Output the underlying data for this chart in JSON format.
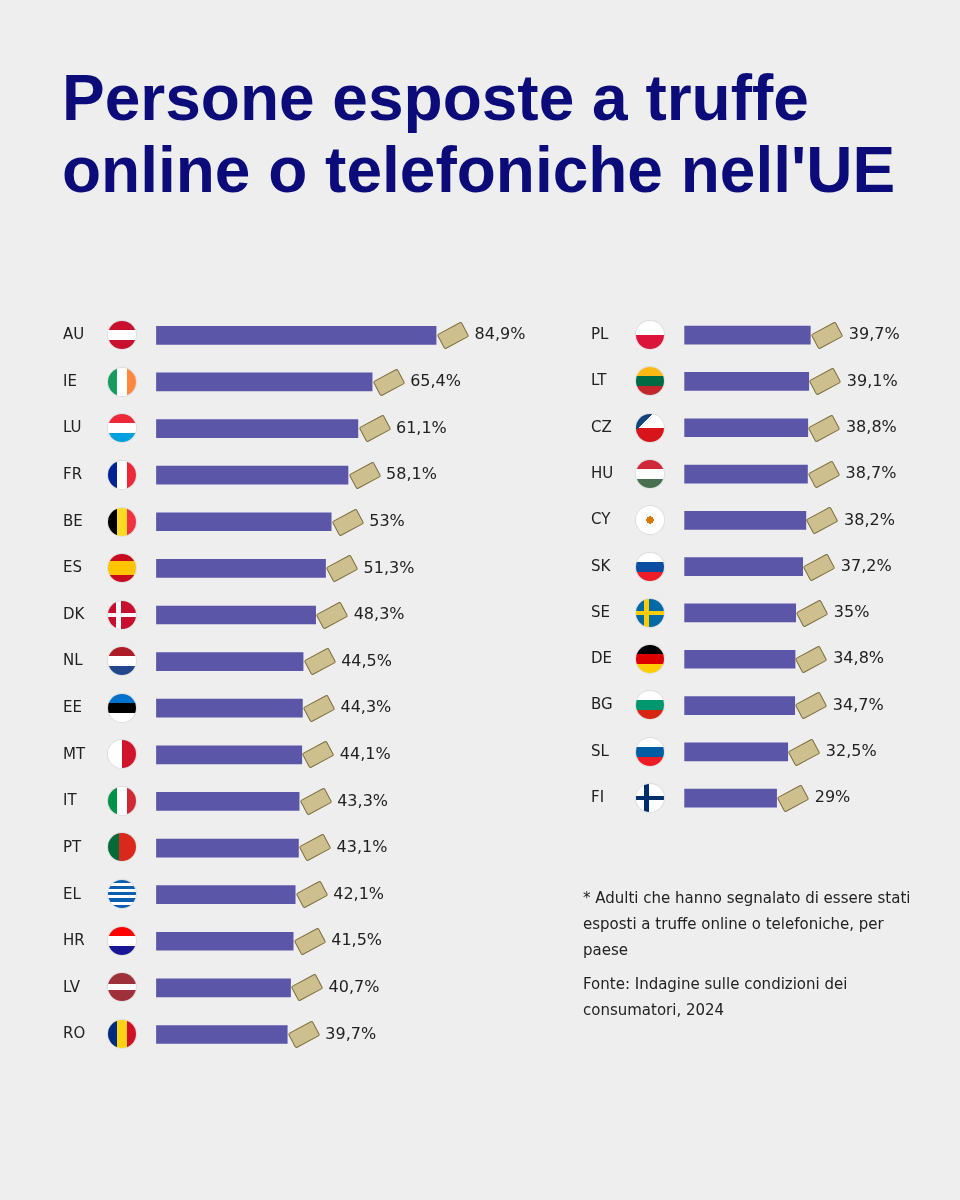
{
  "chart_data": [
    {
      "type": "bar",
      "title": "Persone esposte a truffe online o telefoniche nell'UE",
      "orientation": "horizontal",
      "tick_labels": "y",
      "color": "#5b56a8",
      "categories": [
        "AU",
        "IE",
        "LU",
        "FR",
        "BE",
        "ES",
        "DK",
        "NL",
        "EE",
        "MT",
        "IT",
        "PT",
        "EL",
        "HR",
        "LV",
        "RO"
      ],
      "values": [
        84.9,
        65.4,
        61.1,
        58.1,
        53,
        51.3,
        48.3,
        44.5,
        44.3,
        44.1,
        43.3,
        43.1,
        42.1,
        41.5,
        40.7,
        39.7
      ],
      "value_labels": [
        "84,9%",
        "65,4%",
        "61,1%",
        "58,1%",
        "53%",
        "51,3%",
        "48,3%",
        "44,5%",
        "44,3%",
        "44,1%",
        "43,3%",
        "43,1%",
        "42,1%",
        "41,5%",
        "40,7%",
        "39,7%"
      ]
    },
    {
      "type": "bar",
      "orientation": "horizontal",
      "tick_labels": "y",
      "color": "#5b56a8",
      "categories": [
        "PL",
        "LT",
        "CZ",
        "HU",
        "CY",
        "SK",
        "SE",
        "DE",
        "BG",
        "SL",
        "FI"
      ],
      "values": [
        39.7,
        39.1,
        38.8,
        38.7,
        38.2,
        37.2,
        35,
        34.8,
        34.7,
        32.5,
        29
      ],
      "value_labels": [
        "39,7%",
        "39,1%",
        "38,8%",
        "38,7%",
        "38,2%",
        "37,2%",
        "35%",
        "34,8%",
        "34,7%",
        "32,5%",
        "29%"
      ],
      "annotations": [
        "* Adulti che hanno segnalato di essere stati esposti a truffe online o telefoniche, per paese",
        "Fonte: Indagine sulle condizioni dei consumatori, 2024"
      ]
    }
  ]
}
